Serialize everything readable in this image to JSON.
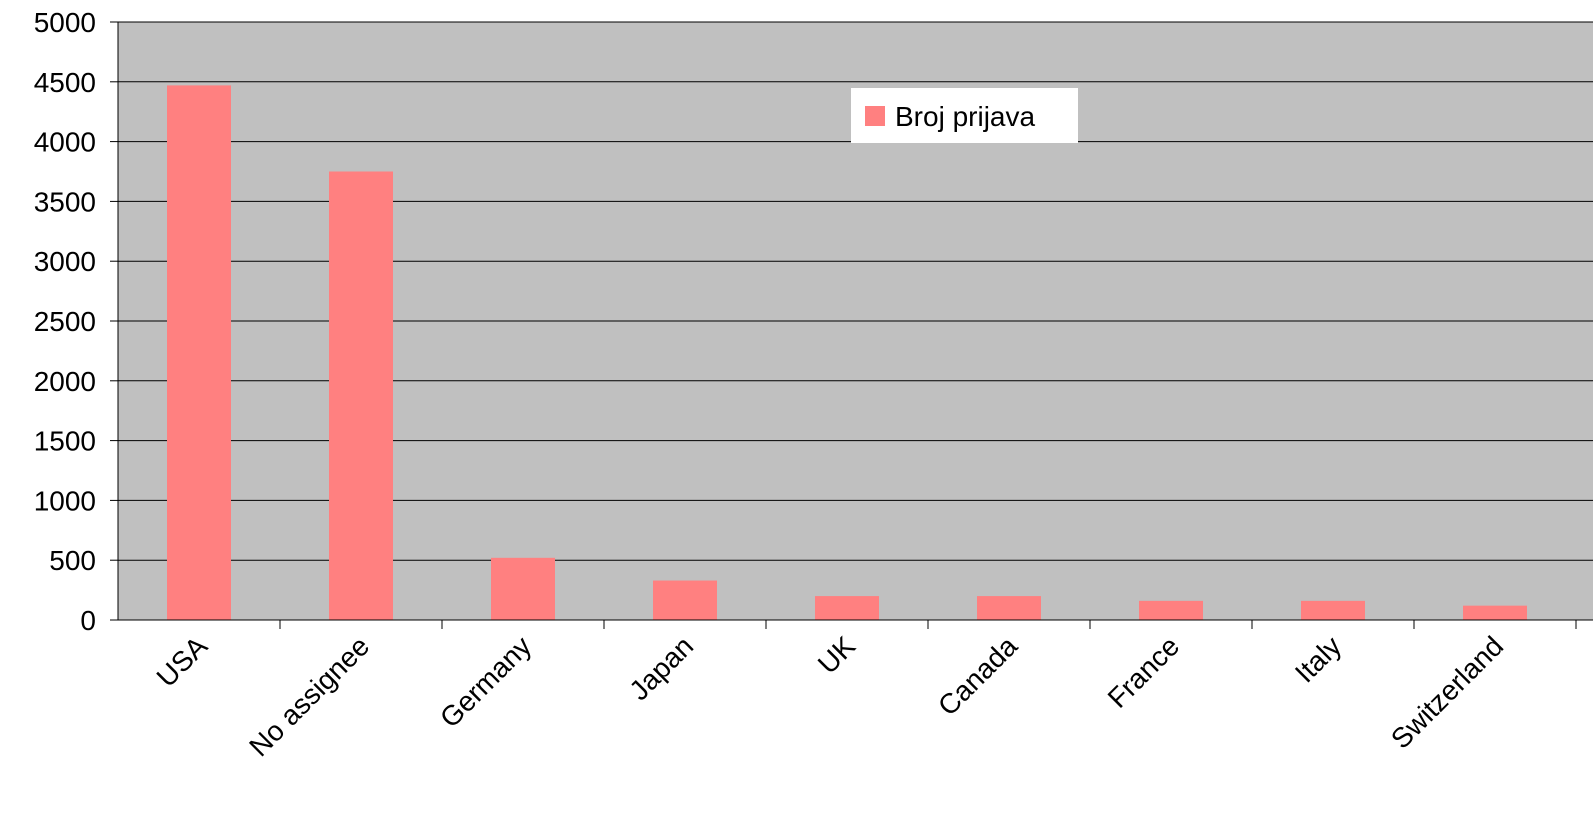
{
  "chart_data": {
    "type": "bar",
    "title": "",
    "xlabel": "",
    "ylabel": "",
    "categories": [
      "USA",
      "No assignee",
      "Germany",
      "Japan",
      "UK",
      "Canada",
      "France",
      "Italy",
      "Switzerland"
    ],
    "series": [
      {
        "name": "Broj prijava",
        "color": "#ff8080",
        "values": [
          4470,
          3750,
          520,
          330,
          200,
          200,
          160,
          160,
          120
        ]
      }
    ],
    "ylim": [
      0,
      5000
    ],
    "yticks": [
      "0",
      "500",
      "1000",
      "1500",
      "2000",
      "2500",
      "3000",
      "3500",
      "4000",
      "4500",
      "5000"
    ],
    "grid": true,
    "legend_position": "top-center",
    "plot_background": "#c0c0c0"
  }
}
